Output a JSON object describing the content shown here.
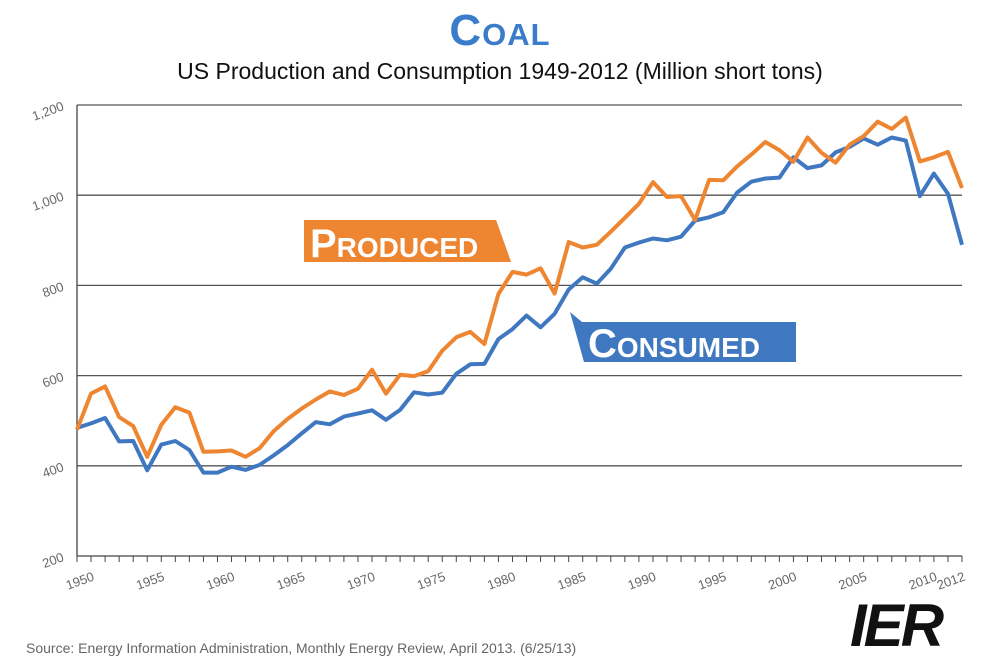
{
  "chart_data": {
    "type": "line",
    "title": "Coal",
    "subtitle": "US Production and Consumption 1949-2012 (Million short tons)",
    "xlabel": "",
    "ylabel": "",
    "ylim": [
      200,
      1200
    ],
    "yticks": [
      "200",
      "400",
      "600",
      "800",
      "1,000",
      "1,200"
    ],
    "xticks": [
      "1950",
      "1955",
      "1960",
      "1965",
      "1970",
      "1975",
      "1980",
      "1985",
      "1990",
      "1995",
      "2000",
      "2005",
      "2010",
      "2012"
    ],
    "grid": true,
    "x": [
      1949,
      1950,
      1951,
      1952,
      1953,
      1954,
      1955,
      1956,
      1957,
      1958,
      1959,
      1960,
      1961,
      1962,
      1963,
      1964,
      1965,
      1966,
      1967,
      1968,
      1969,
      1970,
      1971,
      1972,
      1973,
      1974,
      1975,
      1976,
      1977,
      1978,
      1979,
      1980,
      1981,
      1982,
      1983,
      1984,
      1985,
      1986,
      1987,
      1988,
      1989,
      1990,
      1991,
      1992,
      1993,
      1994,
      1995,
      1996,
      1997,
      1998,
      1999,
      2000,
      2001,
      2002,
      2003,
      2004,
      2005,
      2006,
      2007,
      2008,
      2009,
      2010,
      2011,
      2012
    ],
    "series": [
      {
        "name": "Produced",
        "color": "#ee8530",
        "values": [
          480,
          560,
          576,
          508,
          488,
          420,
          491,
          530,
          518,
          431,
          432,
          434,
          420,
          439,
          477,
          504,
          527,
          547,
          565,
          557,
          571,
          613,
          560,
          602,
          599,
          610,
          655,
          685,
          697,
          670,
          781,
          830,
          824,
          838,
          782,
          896,
          884,
          890,
          919,
          950,
          981,
          1029,
          996,
          998,
          945,
          1034,
          1033,
          1064,
          1090,
          1118,
          1100,
          1074,
          1128,
          1094,
          1072,
          1112,
          1131,
          1163,
          1147,
          1172,
          1075,
          1084,
          1096,
          1016
        ]
      },
      {
        "name": "Consumed",
        "color": "#3f78c1",
        "values": [
          484,
          494,
          506,
          454,
          455,
          390,
          447,
          455,
          435,
          385,
          385,
          398,
          391,
          402,
          423,
          446,
          472,
          497,
          492,
          509,
          516,
          523,
          502,
          524,
          563,
          558,
          562,
          604,
          625,
          626,
          681,
          703,
          733,
          707,
          737,
          791,
          818,
          804,
          837,
          884,
          895,
          904,
          900,
          908,
          944,
          951,
          962,
          1006,
          1030,
          1037,
          1039,
          1084,
          1060,
          1066,
          1095,
          1107,
          1126,
          1112,
          1128,
          1121,
          998,
          1048,
          1003,
          890
        ]
      }
    ]
  },
  "source": "Source: Energy Information Administration, Monthly Energy Review, April 2013. (6/25/13)",
  "logo": "IER"
}
